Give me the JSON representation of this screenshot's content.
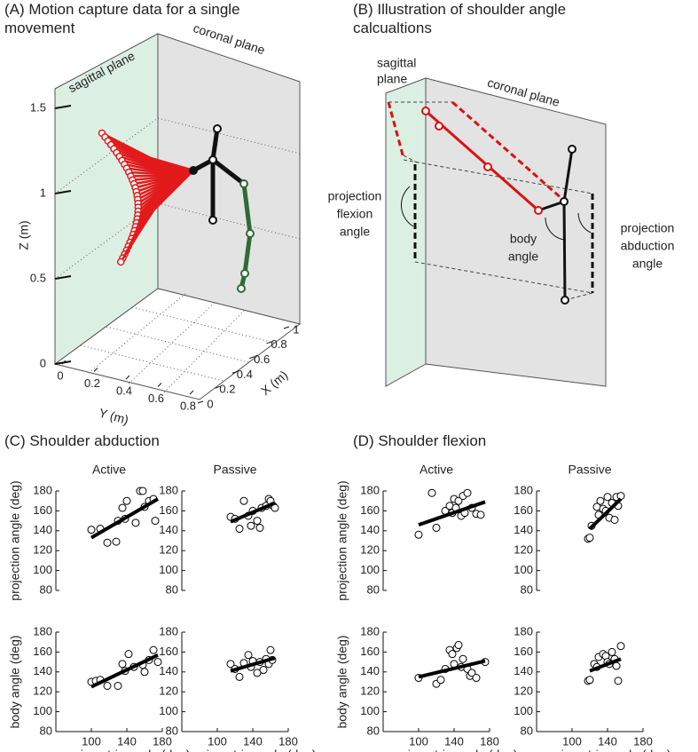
{
  "panel_a": {
    "title": [
      "(A) Motion capture data for a single",
      "movement"
    ],
    "sagittal": "sagittal plane",
    "coronal": "coronal plane",
    "zlabel": "Z (m)",
    "ylabel": "Y (m)",
    "xlabel": "X (m)",
    "zlim": [
      0,
      1.5
    ],
    "zticks": [
      0,
      0.5,
      1,
      1.5
    ],
    "ylim": [
      0,
      0.8
    ],
    "yticks": [
      0,
      0.2,
      0.4,
      0.6,
      0.8
    ],
    "xlim": [
      0,
      1
    ],
    "xticks": [
      0,
      0.2,
      0.4,
      0.6,
      0.8,
      1
    ]
  },
  "panel_b": {
    "title": [
      "(B) Illustration of shoulder angle",
      "calcualtions"
    ],
    "sagittal": [
      "sagittal",
      "plane"
    ],
    "coronal": "coronal plane",
    "flexion": [
      "projection",
      "flexion",
      "angle"
    ],
    "body": [
      "body",
      "angle"
    ],
    "abduction": [
      "projection",
      "abduction",
      "angle"
    ]
  },
  "panel_c": {
    "title": "(C) Shoulder abduction"
  },
  "panel_d": {
    "title": "(D) Shoulder flexion"
  },
  "chart_data": [
    {
      "type": "scatter",
      "title": "Active",
      "ylabel": "projection angle (deg)",
      "color": "#000000",
      "xlim": [
        60,
        180
      ],
      "ylim": [
        80,
        180
      ],
      "yticks": [
        80,
        100,
        120,
        140,
        160,
        180
      ],
      "x": [
        100,
        110,
        118,
        128,
        130,
        135,
        138,
        140,
        150,
        155,
        158,
        160,
        165,
        170,
        172
      ],
      "values": [
        141,
        142,
        128,
        129,
        150,
        163,
        152,
        170,
        148,
        180,
        180,
        164,
        170,
        172,
        150
      ],
      "fit": {
        "x": [
          100,
          175
        ],
        "values": [
          133,
          172
        ]
      }
    },
    {
      "type": "scatter",
      "title": "Passive",
      "color": "#000000",
      "xlim": [
        60,
        180
      ],
      "ylim": [
        80,
        180
      ],
      "yticks": [
        80,
        100,
        120,
        140,
        160,
        180
      ],
      "x": [
        115,
        120,
        125,
        130,
        135,
        138,
        140,
        145,
        148,
        150,
        155,
        158,
        160,
        163,
        165
      ],
      "values": [
        154,
        152,
        142,
        170,
        155,
        145,
        160,
        150,
        143,
        163,
        165,
        172,
        170,
        165,
        163
      ],
      "fit": {
        "x": [
          115,
          165
        ],
        "values": [
          149,
          168
        ]
      }
    },
    {
      "type": "scatter",
      "ylabel": "body angle (deg)",
      "xlabel": "goniometric angle (deg)",
      "color": "#000000",
      "xlim": [
        60,
        180
      ],
      "ylim": [
        80,
        180
      ],
      "yticks": [
        80,
        100,
        120,
        140,
        160,
        180
      ],
      "xticks": [
        100,
        140,
        180
      ],
      "x": [
        100,
        105,
        110,
        118,
        130,
        135,
        138,
        142,
        148,
        158,
        160,
        165,
        170,
        175
      ],
      "values": [
        130,
        131,
        132,
        126,
        126,
        148,
        141,
        158,
        145,
        147,
        140,
        152,
        162,
        150
      ],
      "fit": {
        "x": [
          100,
          175
        ],
        "values": [
          125,
          157
        ]
      }
    },
    {
      "type": "scatter",
      "xlabel": "goniometric angle (deg)",
      "color": "#000000",
      "xlim": [
        60,
        180
      ],
      "ylim": [
        80,
        180
      ],
      "yticks": [
        80,
        100,
        120,
        140,
        160,
        180
      ],
      "xticks": [
        100,
        140,
        180
      ],
      "x": [
        115,
        120,
        125,
        130,
        135,
        138,
        140,
        145,
        148,
        152,
        155,
        158,
        160,
        162
      ],
      "values": [
        148,
        143,
        135,
        149,
        157,
        145,
        151,
        139,
        150,
        142,
        153,
        148,
        162,
        152
      ],
      "fit": {
        "x": [
          115,
          165
        ],
        "values": [
          141,
          154
        ]
      }
    },
    {
      "type": "scatter",
      "title": "Active",
      "ylabel": "projection angle (deg)",
      "color": "#000000",
      "xlim": [
        60,
        180
      ],
      "ylim": [
        80,
        180
      ],
      "yticks": [
        80,
        100,
        120,
        140,
        160,
        180
      ],
      "x": [
        100,
        115,
        120,
        130,
        135,
        138,
        140,
        142,
        145,
        148,
        150,
        152,
        155,
        160,
        165,
        170
      ],
      "values": [
        136,
        178,
        143,
        160,
        165,
        158,
        172,
        163,
        170,
        155,
        175,
        158,
        178,
        163,
        157,
        156
      ],
      "fit": {
        "x": [
          100,
          175
        ],
        "values": [
          146,
          169
        ]
      }
    },
    {
      "type": "scatter",
      "title": "Passive",
      "color": "#000000",
      "xlim": [
        60,
        180
      ],
      "ylim": [
        80,
        180
      ],
      "yticks": [
        80,
        100,
        120,
        140,
        160,
        180
      ],
      "x": [
        118,
        120,
        122,
        128,
        130,
        132,
        135,
        138,
        140,
        142,
        145,
        148,
        150,
        152,
        155
      ],
      "values": [
        132,
        133,
        145,
        164,
        156,
        170,
        162,
        160,
        174,
        153,
        168,
        151,
        174,
        165,
        175
      ],
      "fit": {
        "x": [
          120,
          155
        ],
        "values": [
          142,
          172
        ]
      }
    },
    {
      "type": "scatter",
      "ylabel": "body angle (deg)",
      "xlabel": "goniometric angle (deg)",
      "color": "#000000",
      "xlim": [
        60,
        180
      ],
      "ylim": [
        80,
        180
      ],
      "yticks": [
        80,
        100,
        120,
        140,
        160,
        180
      ],
      "xticks": [
        100,
        140,
        180
      ],
      "x": [
        100,
        120,
        125,
        130,
        135,
        138,
        140,
        143,
        145,
        148,
        150,
        155,
        158,
        160,
        165,
        175
      ],
      "values": [
        134,
        128,
        132,
        143,
        162,
        158,
        148,
        164,
        167,
        145,
        153,
        143,
        136,
        139,
        134,
        150
      ],
      "fit": {
        "x": [
          100,
          175
        ],
        "values": [
          135,
          151
        ]
      }
    },
    {
      "type": "scatter",
      "xlabel": "goniometric angle (deg)",
      "color": "#000000",
      "xlim": [
        60,
        180
      ],
      "ylim": [
        80,
        180
      ],
      "yticks": [
        80,
        100,
        120,
        140,
        160,
        180
      ],
      "xticks": [
        100,
        140,
        180
      ],
      "x": [
        118,
        120,
        125,
        128,
        130,
        135,
        138,
        140,
        142,
        145,
        148,
        150,
        152,
        155
      ],
      "values": [
        131,
        132,
        148,
        145,
        155,
        158,
        156,
        150,
        148,
        160,
        153,
        146,
        131,
        166
      ],
      "fit": {
        "x": [
          120,
          155
        ],
        "values": [
          141,
          153
        ]
      }
    }
  ]
}
